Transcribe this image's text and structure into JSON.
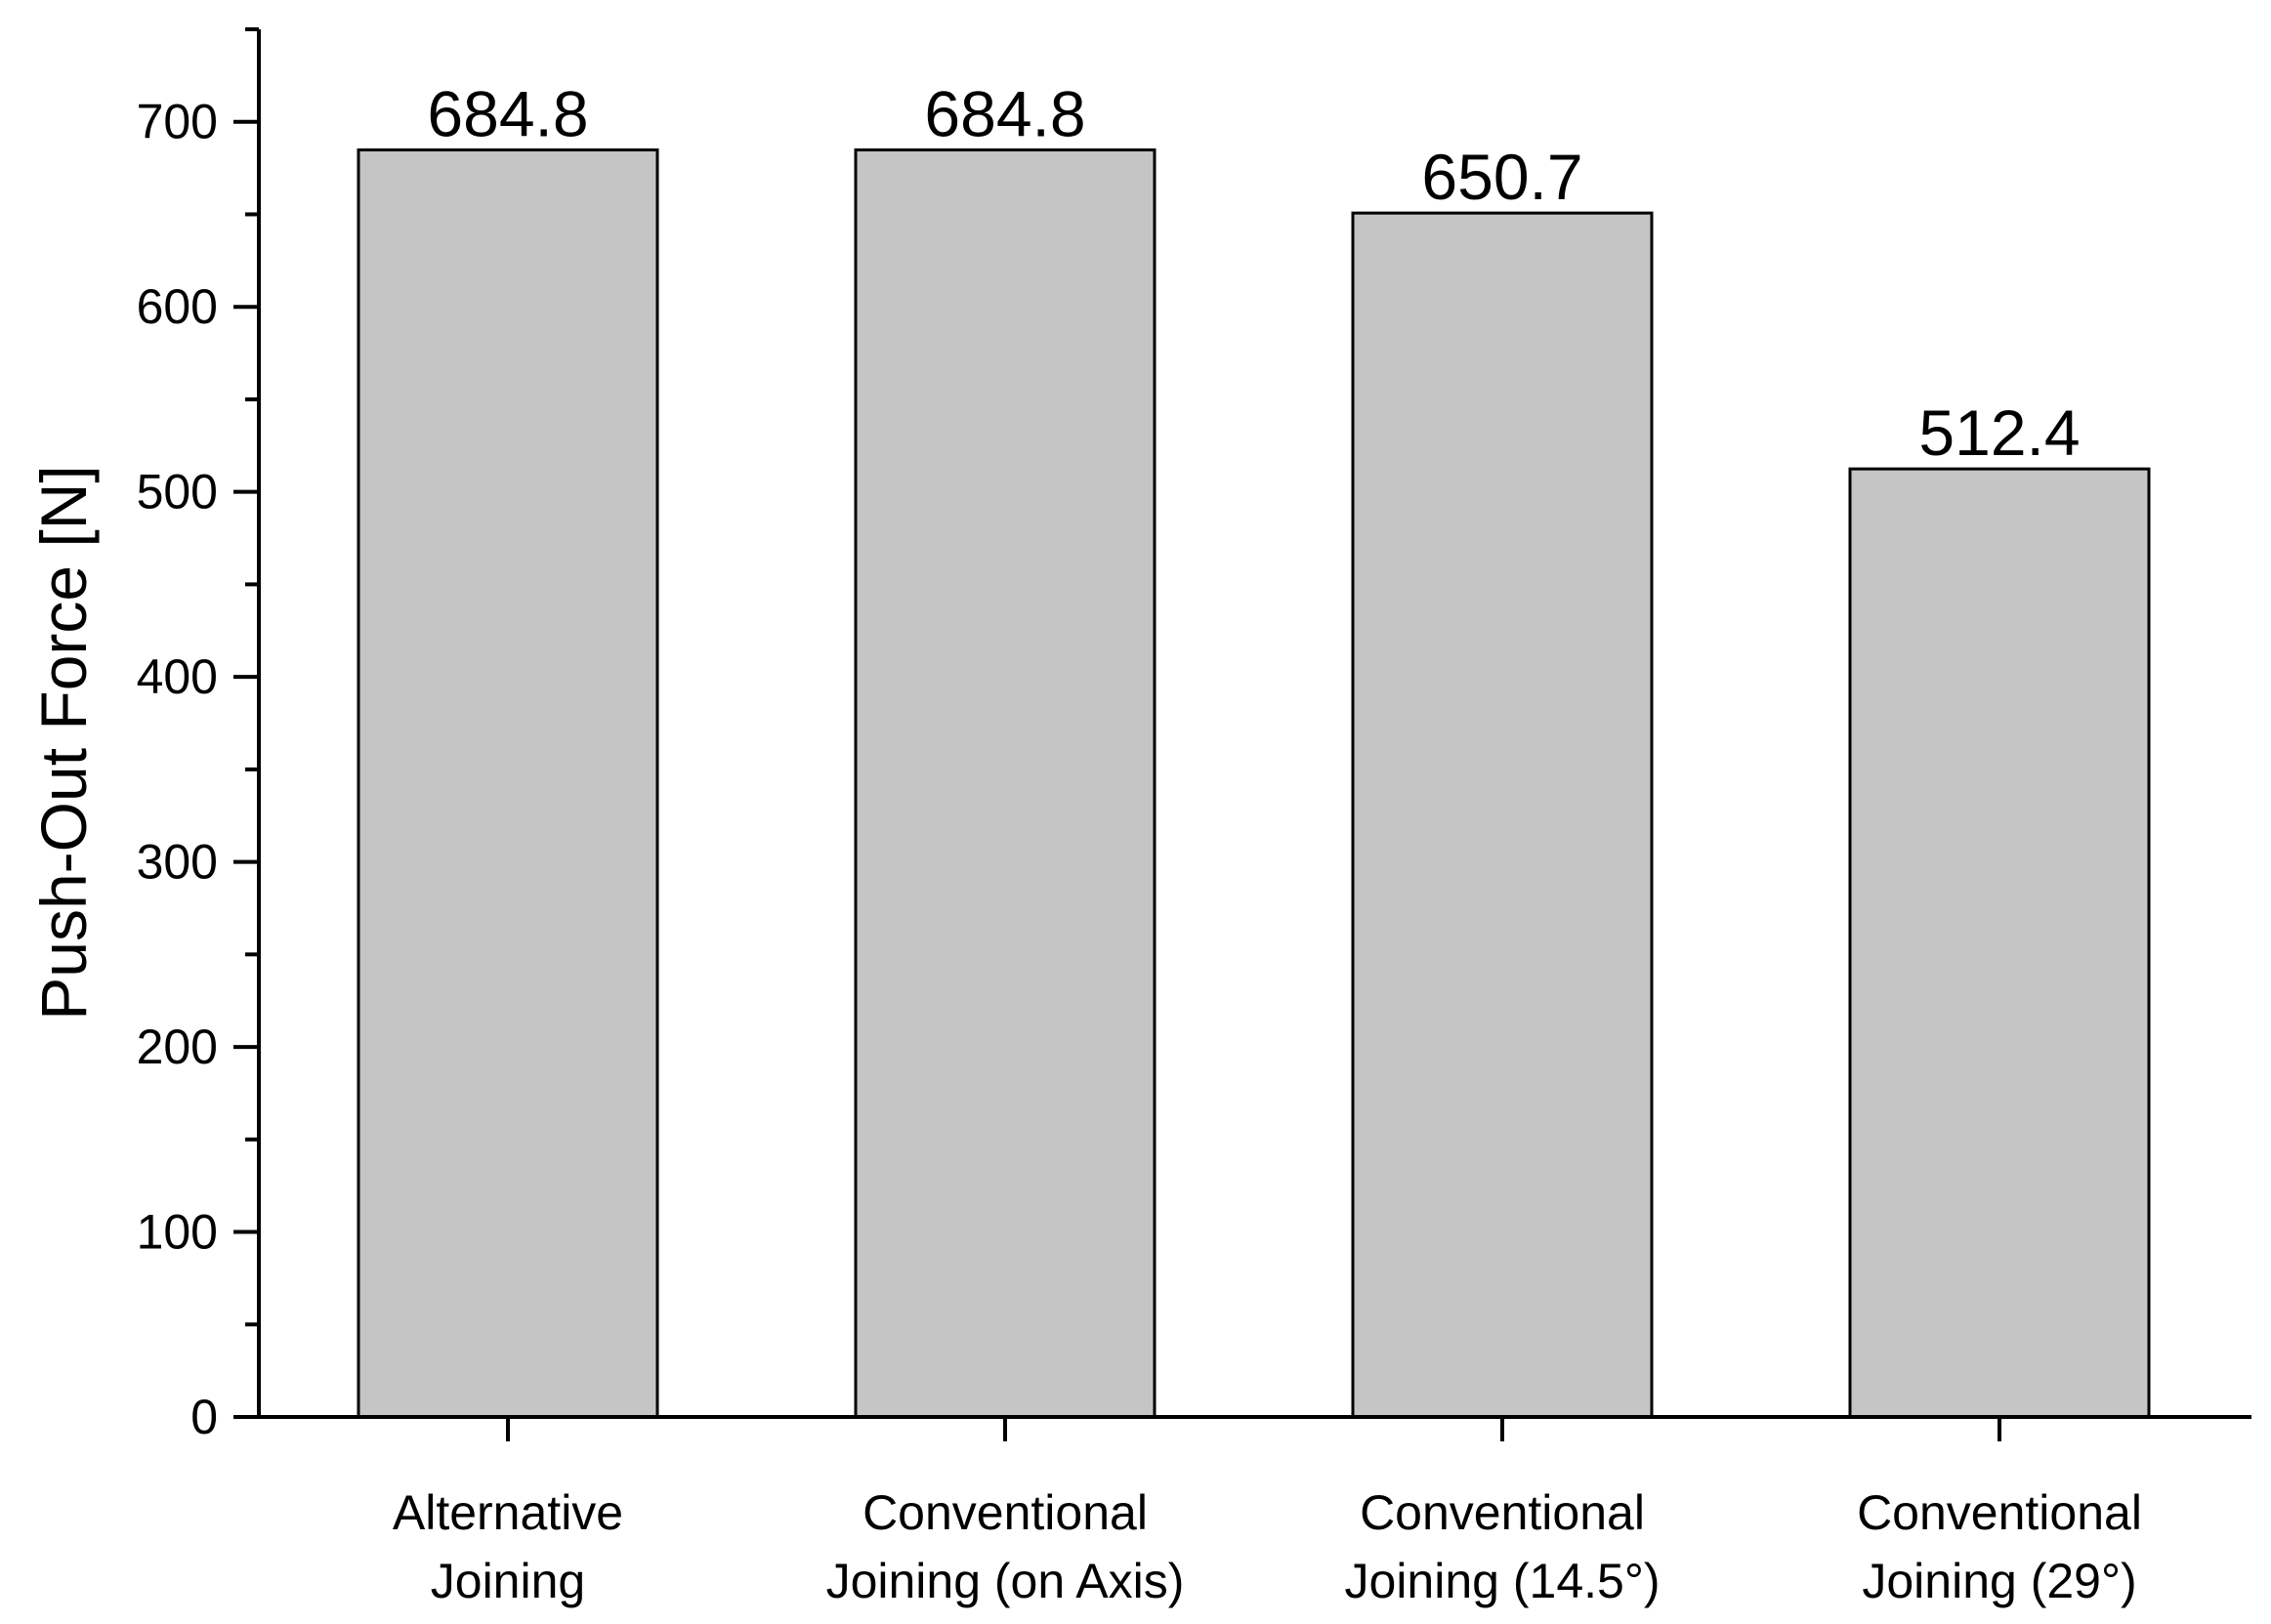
{
  "chart_data": {
    "type": "bar",
    "title": "",
    "xlabel": "",
    "ylabel": "Push-Out Force [N]",
    "categories": [
      [
        "Alternative",
        "Joining"
      ],
      [
        "Conventional",
        "Joining (on Axis)"
      ],
      [
        "Conventional",
        "Joining (14.5°)"
      ],
      [
        "Conventional",
        "Joining (29°)"
      ]
    ],
    "values": [
      684.8,
      684.8,
      650.7,
      512.4
    ],
    "value_labels": [
      "684.8",
      "684.8",
      "650.7",
      "512.4"
    ],
    "ylim": [
      0,
      750
    ],
    "yticks": [
      0,
      100,
      200,
      300,
      400,
      500,
      600,
      700
    ],
    "ytick_labels": [
      "0",
      "100",
      "200",
      "300",
      "400",
      "500",
      "600",
      "700"
    ],
    "minor_tick_step": 50,
    "grid": false,
    "legend": "none",
    "bar_color": "#c5c5c5",
    "bar_edge_color": "#000000"
  }
}
